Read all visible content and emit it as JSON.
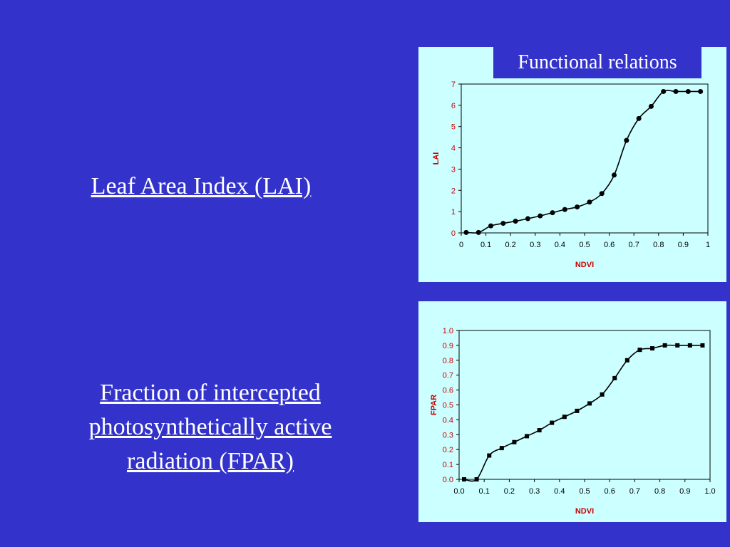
{
  "slide": {
    "links": {
      "lai": "Leaf Area Index (LAI)",
      "fpar": "Fraction of intercepted photosynthetically active radiation (FPAR)"
    },
    "panel_title": "Functional relations"
  },
  "colors": {
    "background": "#3333cc",
    "panel": "#ccffff",
    "axis_label": "#cc0000",
    "tick_label": "#cc0000"
  },
  "chart_data": [
    {
      "type": "line",
      "marker": "circle",
      "xlabel": "NDVI",
      "ylabel": "LAI",
      "xlim": [
        0,
        1
      ],
      "ylim": [
        0,
        7
      ],
      "xticks": [
        "0",
        "0.1",
        "0.2",
        "0.3",
        "0.4",
        "0.5",
        "0.6",
        "0.7",
        "0.8",
        "0.9",
        "1"
      ],
      "yticks": [
        "0",
        "1",
        "2",
        "3",
        "4",
        "5",
        "6",
        "7"
      ],
      "grid": false,
      "series": [
        {
          "x": [
            0.02,
            0.07,
            0.12,
            0.17,
            0.22,
            0.27,
            0.32,
            0.37,
            0.42,
            0.47,
            0.52,
            0.57,
            0.62,
            0.67,
            0.72,
            0.77,
            0.82,
            0.87,
            0.92,
            0.97
          ],
          "y": [
            0.02,
            0.02,
            0.33,
            0.45,
            0.55,
            0.67,
            0.8,
            0.95,
            1.1,
            1.22,
            1.45,
            1.85,
            2.72,
            4.35,
            5.38,
            5.95,
            6.65,
            6.65,
            6.65,
            6.65
          ]
        }
      ]
    },
    {
      "type": "line",
      "marker": "square",
      "xlabel": "NDVI",
      "ylabel": "FPAR",
      "xlim": [
        0,
        1
      ],
      "ylim": [
        0,
        1
      ],
      "xticks": [
        "0.0",
        "0.1",
        "0.2",
        "0.3",
        "0.4",
        "0.5",
        "0.6",
        "0.7",
        "0.8",
        "0.9",
        "1.0"
      ],
      "yticks": [
        "0.0",
        "0.1",
        "0.2",
        "0.3",
        "0.4",
        "0.5",
        "0.6",
        "0.7",
        "0.8",
        "0.9",
        "1.0"
      ],
      "grid": false,
      "series": [
        {
          "x": [
            0.02,
            0.07,
            0.12,
            0.17,
            0.22,
            0.27,
            0.32,
            0.37,
            0.42,
            0.47,
            0.52,
            0.57,
            0.62,
            0.67,
            0.72,
            0.77,
            0.82,
            0.87,
            0.92,
            0.97
          ],
          "y": [
            0.0,
            0.0,
            0.16,
            0.21,
            0.25,
            0.29,
            0.33,
            0.38,
            0.42,
            0.46,
            0.51,
            0.57,
            0.68,
            0.8,
            0.87,
            0.88,
            0.9,
            0.9,
            0.9,
            0.9
          ]
        }
      ]
    }
  ]
}
